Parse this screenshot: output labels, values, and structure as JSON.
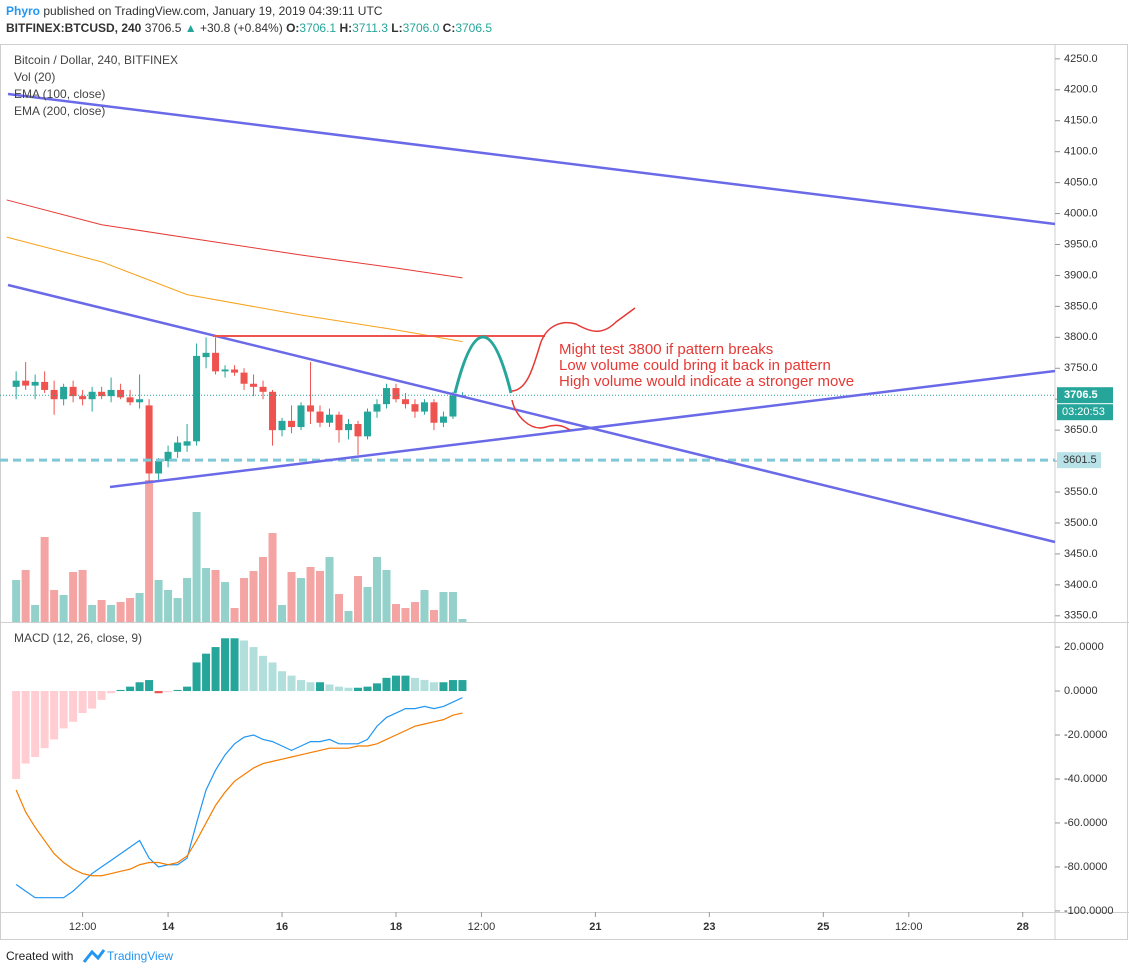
{
  "header": {
    "author": "Phyro",
    "published": "published on TradingView.com, January 19, 2019 04:39:11 UTC",
    "symbol": "BITFINEX:BTCUSD, 240",
    "last": "3706.5",
    "arrow": "▲",
    "change": "+30.8 (+0.84%)",
    "open_label": "O:",
    "open": "3706.1",
    "high_label": "H:",
    "high": "3711.3",
    "low_label": "L:",
    "low": "3706.0",
    "close_label": "C:",
    "close": "3706.5"
  },
  "chart_data": [
    {
      "type": "candlestick",
      "title": "Bitcoin / Dollar, 240, BITFINEX",
      "x": [
        0,
        1,
        2,
        3,
        4,
        5,
        6,
        7,
        8,
        9,
        10,
        11,
        12,
        13,
        14,
        15,
        16,
        17,
        18,
        19,
        20,
        21,
        22,
        23,
        24,
        25,
        26,
        27,
        28,
        29,
        30,
        31,
        32,
        33,
        34,
        35,
        36,
        37,
        38,
        39,
        40,
        41,
        42,
        43,
        44,
        45,
        46,
        47
      ],
      "open": [
        3720,
        3730,
        3722,
        3728,
        3715,
        3700,
        3720,
        3705,
        3700,
        3712,
        3705,
        3715,
        3703,
        3695,
        3690,
        3580,
        3600,
        3615,
        3625,
        3632,
        3768,
        3775,
        3745,
        3748,
        3743,
        3725,
        3720,
        3712,
        3650,
        3665,
        3655,
        3690,
        3680,
        3662,
        3675,
        3650,
        3660,
        3640,
        3680,
        3692,
        3718,
        3700,
        3692,
        3680,
        3695,
        3662,
        3672,
        3706.1
      ],
      "high": [
        3745,
        3760,
        3740,
        3745,
        3730,
        3725,
        3730,
        3715,
        3720,
        3720,
        3735,
        3725,
        3715,
        3740,
        3700,
        3605,
        3625,
        3640,
        3660,
        3790,
        3800,
        3800,
        3755,
        3755,
        3750,
        3740,
        3730,
        3715,
        3670,
        3690,
        3695,
        3760,
        3690,
        3685,
        3680,
        3668,
        3665,
        3685,
        3700,
        3725,
        3725,
        3710,
        3700,
        3700,
        3700,
        3680,
        3712,
        3711.3
      ],
      "low": [
        3700,
        3715,
        3700,
        3710,
        3675,
        3690,
        3695,
        3690,
        3680,
        3700,
        3695,
        3700,
        3690,
        3685,
        3565,
        3570,
        3590,
        3605,
        3615,
        3625,
        3750,
        3740,
        3735,
        3738,
        3715,
        3705,
        3700,
        3625,
        3640,
        3645,
        3650,
        3660,
        3655,
        3655,
        3630,
        3635,
        3610,
        3635,
        3670,
        3685,
        3695,
        3685,
        3670,
        3675,
        3650,
        3655,
        3668,
        3706.0
      ],
      "close": [
        3730,
        3722,
        3728,
        3715,
        3700,
        3720,
        3705,
        3700,
        3712,
        3705,
        3715,
        3703,
        3695,
        3700,
        3580,
        3600,
        3615,
        3630,
        3632,
        3770,
        3775,
        3745,
        3748,
        3743,
        3725,
        3720,
        3712,
        3650,
        3665,
        3655,
        3690,
        3680,
        3662,
        3675,
        3650,
        3660,
        3640,
        3680,
        3692,
        3718,
        3700,
        3692,
        3680,
        3695,
        3662,
        3672,
        3706,
        3706.5
      ],
      "up_color": "#26a69a",
      "down_color": "#ef5350",
      "volume_name": "Vol (20)",
      "volume": [
        420,
        520,
        170,
        850,
        320,
        270,
        500,
        520,
        170,
        220,
        170,
        200,
        240,
        290,
        1420,
        420,
        320,
        240,
        440,
        1100,
        540,
        520,
        400,
        140,
        440,
        510,
        650,
        890,
        170,
        500,
        440,
        550,
        510,
        650,
        280,
        110,
        460,
        350,
        650,
        520,
        180,
        140,
        200,
        320,
        120,
        300,
        300,
        30
      ],
      "volume_lim": [
        0,
        5780
      ],
      "volume_up_color": "#94d1ca",
      "volume_down_color": "#f5a4a4",
      "series": [
        {
          "name": "EMA (100, close)",
          "color": "#f7a21b",
          "x": [
            -1,
            9,
            18,
            30,
            40,
            47
          ],
          "values": [
            3962,
            3922,
            3869,
            3836,
            3812,
            3793
          ]
        },
        {
          "name": "EMA (200, close)",
          "color": "#e53935",
          "x": [
            -1,
            9,
            18,
            30,
            40,
            47
          ],
          "values": [
            4022,
            3982,
            3961,
            3933,
            3912,
            3896
          ]
        }
      ],
      "xlim": [
        -1.7,
        109.4
      ],
      "xticks": [
        {
          "value": 7,
          "label": "12:00"
        },
        {
          "value": 16,
          "label": "14"
        },
        {
          "value": 28,
          "label": "16"
        },
        {
          "value": 40,
          "label": "18"
        },
        {
          "value": 49,
          "label": "12:00"
        },
        {
          "value": 61,
          "label": "21"
        },
        {
          "value": 73,
          "label": "23"
        },
        {
          "value": 85,
          "label": "25"
        },
        {
          "value": 94,
          "label": "12:00"
        },
        {
          "value": 106,
          "label": "28"
        }
      ],
      "ylim": [
        3340,
        4274
      ],
      "yticks": [
        {
          "value": 3350,
          "label": "3350.0"
        },
        {
          "value": 3400,
          "label": "3400.0"
        },
        {
          "value": 3450,
          "label": "3450.0"
        },
        {
          "value": 3500,
          "label": "3500.0"
        },
        {
          "value": 3550,
          "label": "3550.0"
        },
        {
          "value": 3600,
          "label": "3600.0"
        },
        {
          "value": 3650,
          "label": "3650.0"
        },
        {
          "value": 3700,
          "label": "3700.0"
        },
        {
          "value": 3750,
          "label": "3750.0"
        },
        {
          "value": 3800,
          "label": "3800.0"
        },
        {
          "value": 3850,
          "label": "3850.0"
        },
        {
          "value": 3900,
          "label": "3900.0"
        },
        {
          "value": 3950,
          "label": "3950.0"
        },
        {
          "value": 4000,
          "label": "4000.0"
        },
        {
          "value": 4050,
          "label": "4050.0"
        },
        {
          "value": 4100,
          "label": "4100.0"
        },
        {
          "value": 4150,
          "label": "4150.0"
        },
        {
          "value": 4200,
          "label": "4200.0"
        },
        {
          "value": 4250,
          "label": "4250.0"
        }
      ],
      "last_price": 3706.5,
      "countdown": "03:20:53",
      "level": 3601.5,
      "level_color": "#7fc8d6",
      "annotations": [
        "Might test 3800 if pattern breaks",
        "Low volume could bring it back in pattern",
        "High volume would indicate a stronger move"
      ]
    },
    {
      "type": "macd",
      "title": "MACD (12, 26, close, 9)",
      "x": [
        0,
        1,
        2,
        3,
        4,
        5,
        6,
        7,
        8,
        9,
        10,
        11,
        12,
        13,
        14,
        15,
        16,
        17,
        18,
        19,
        20,
        21,
        22,
        23,
        24,
        25,
        26,
        27,
        28,
        29,
        30,
        31,
        32,
        33,
        34,
        35,
        36,
        37,
        38,
        39,
        40,
        41,
        42,
        43,
        44,
        45,
        46,
        47
      ],
      "histogram": [
        -40,
        -33,
        -30,
        -26,
        -22,
        -17,
        -14,
        -10,
        -8,
        -4,
        -1,
        0.5,
        2,
        4,
        5,
        -1,
        -0.5,
        0.5,
        2,
        13,
        17,
        20,
        24,
        24,
        23,
        20,
        16,
        13,
        9,
        7,
        5,
        4,
        4,
        3,
        2,
        1.5,
        1.5,
        2,
        3.5,
        6,
        7,
        7,
        6,
        5,
        4,
        4,
        5,
        5
      ],
      "histogram_colors": [
        "#26a69a",
        "#b2dfdb",
        "#ef5350",
        "#ffcdd2"
      ],
      "series": [
        {
          "color": "#2196f3",
          "values": [
            -88,
            -91,
            -94,
            -94,
            -94,
            -94,
            -91,
            -87,
            -83,
            -80,
            -77,
            -74,
            -71,
            -68,
            -76,
            -80,
            -79,
            -79,
            -76,
            -60,
            -45,
            -36,
            -29,
            -24,
            -21,
            -20,
            -22,
            -23,
            -25,
            -27,
            -25,
            -23,
            -23,
            -22,
            -24,
            -24,
            -24,
            -22,
            -16,
            -12,
            -10,
            -8,
            -8,
            -7,
            -8,
            -7,
            -5,
            -3
          ]
        },
        {
          "color": "#f57c00",
          "values": [
            -45,
            -55,
            -62,
            -68,
            -74,
            -78,
            -81,
            -83,
            -84,
            -84,
            -83,
            -82,
            -81,
            -79,
            -78,
            -78,
            -79,
            -78,
            -75,
            -68,
            -60,
            -52,
            -46,
            -41,
            -38,
            -35,
            -33,
            -32,
            -31,
            -30,
            -29,
            -28,
            -27,
            -26,
            -26,
            -26,
            -25,
            -25,
            -24,
            -22,
            -20,
            -18,
            -16,
            -15,
            -14,
            -13,
            -11,
            -10
          ]
        }
      ],
      "ylim": [
        -100.5,
        31.4
      ],
      "yticks": [
        {
          "value": -100,
          "label": "-100.0000"
        },
        {
          "value": -80,
          "label": "-80.0000"
        },
        {
          "value": -60,
          "label": "-60.0000"
        },
        {
          "value": -40,
          "label": "-40.0000"
        },
        {
          "value": -20,
          "label": "-20.0000"
        },
        {
          "value": 0,
          "label": "0.0000"
        },
        {
          "value": 20,
          "label": "20.0000"
        }
      ]
    }
  ],
  "footer": {
    "created": "Created with",
    "brand": "TradingView"
  }
}
